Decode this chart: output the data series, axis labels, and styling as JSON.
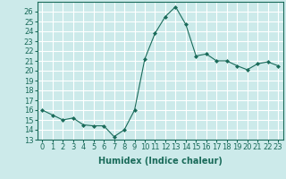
{
  "x": [
    0,
    1,
    2,
    3,
    4,
    5,
    6,
    7,
    8,
    9,
    10,
    11,
    12,
    13,
    14,
    15,
    16,
    17,
    18,
    19,
    20,
    21,
    22,
    23
  ],
  "y": [
    16.0,
    15.5,
    15.0,
    15.2,
    14.5,
    14.4,
    14.4,
    13.3,
    14.0,
    16.0,
    21.2,
    23.8,
    25.5,
    26.5,
    24.7,
    21.5,
    21.7,
    21.0,
    21.0,
    20.5,
    20.1,
    20.7,
    20.9,
    20.5
  ],
  "xlabel": "Humidex (Indice chaleur)",
  "ylim": [
    13,
    27
  ],
  "xlim": [
    -0.5,
    23.5
  ],
  "yticks": [
    13,
    14,
    15,
    16,
    17,
    18,
    19,
    20,
    21,
    22,
    23,
    24,
    25,
    26
  ],
  "xticks": [
    0,
    1,
    2,
    3,
    4,
    5,
    6,
    7,
    8,
    9,
    10,
    11,
    12,
    13,
    14,
    15,
    16,
    17,
    18,
    19,
    20,
    21,
    22,
    23
  ],
  "line_color": "#1a6b5a",
  "marker": "D",
  "marker_size": 2,
  "bg_color": "#cceaea",
  "grid_color": "#ffffff",
  "xlabel_fontsize": 7,
  "tick_fontsize": 6,
  "linewidth": 0.8
}
